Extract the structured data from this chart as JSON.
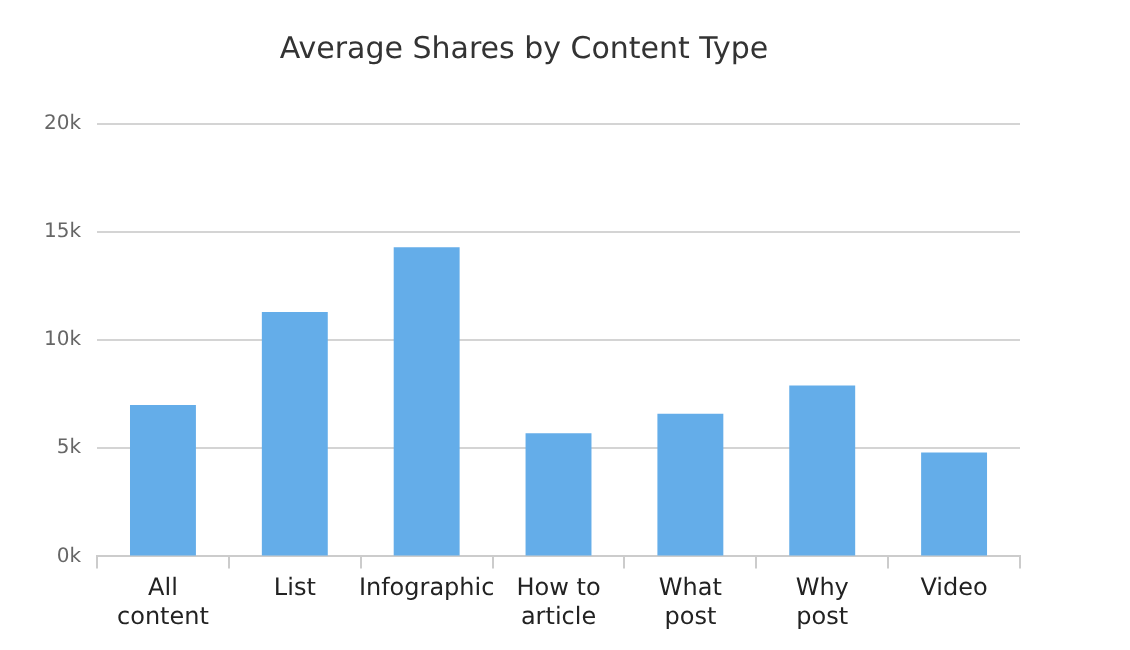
{
  "chart_data": {
    "type": "bar",
    "title": "Average Shares by Content Type",
    "categories": [
      "All content",
      "List",
      "Infographic",
      "How to article",
      "What post",
      "Why post",
      "Video"
    ],
    "values": [
      7000,
      11300,
      14300,
      5700,
      6600,
      7900,
      4800
    ],
    "color": "#64ade9",
    "ylim": [
      0,
      20000
    ],
    "yticks": [
      {
        "value": 0,
        "label": "0k"
      },
      {
        "value": 5000,
        "label": "5k"
      },
      {
        "value": 10000,
        "label": "10k"
      },
      {
        "value": 15000,
        "label": "15k"
      },
      {
        "value": 20000,
        "label": "20k"
      }
    ],
    "grid": "y",
    "legend": false
  }
}
